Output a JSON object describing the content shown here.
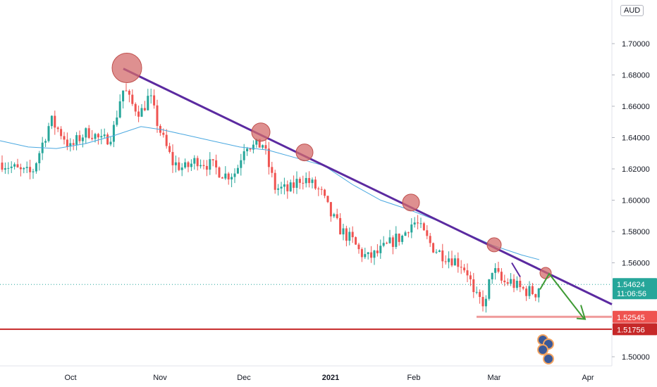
{
  "chart_data": {
    "type": "candlestick",
    "symbol_currency": "AUD",
    "price_axis": {
      "ticks": [
        "1.70000",
        "1.68000",
        "1.66000",
        "1.64000",
        "1.62000",
        "1.60000",
        "1.58000",
        "1.56000",
        "1.50000"
      ],
      "values": [
        1.7,
        1.68,
        1.66,
        1.64,
        1.62,
        1.6,
        1.58,
        1.56,
        1.5
      ],
      "ylim": [
        1.493,
        1.72
      ]
    },
    "time_axis": {
      "labels": [
        "Oct",
        "Nov",
        "Dec",
        "2021",
        "Feb",
        "Mar",
        "Apr"
      ],
      "bold": [
        false,
        false,
        false,
        true,
        false,
        false,
        false
      ]
    },
    "moving_average_color": "#4aa8e0",
    "colors": {
      "up": "#26a69a",
      "down": "#ef5350",
      "trendline": "#5b2aa0",
      "arrow": "#3f9b35",
      "support": "#c62828",
      "support_light": "#ef9a9a",
      "circle": "#d36b6b"
    },
    "current_price": {
      "value": "1.54624",
      "countdown": "11:06:56"
    },
    "levels": [
      {
        "value": "1.52545",
        "style": "light"
      },
      {
        "value": "1.51756",
        "style": "strong"
      }
    ],
    "trendline": {
      "from": [
        1.684,
        "late Oct"
      ],
      "to": [
        1.533,
        "early Apr"
      ]
    },
    "touch_points": [
      1.684,
      1.643,
      1.63,
      1.598,
      1.571,
      1.553
    ]
  }
}
